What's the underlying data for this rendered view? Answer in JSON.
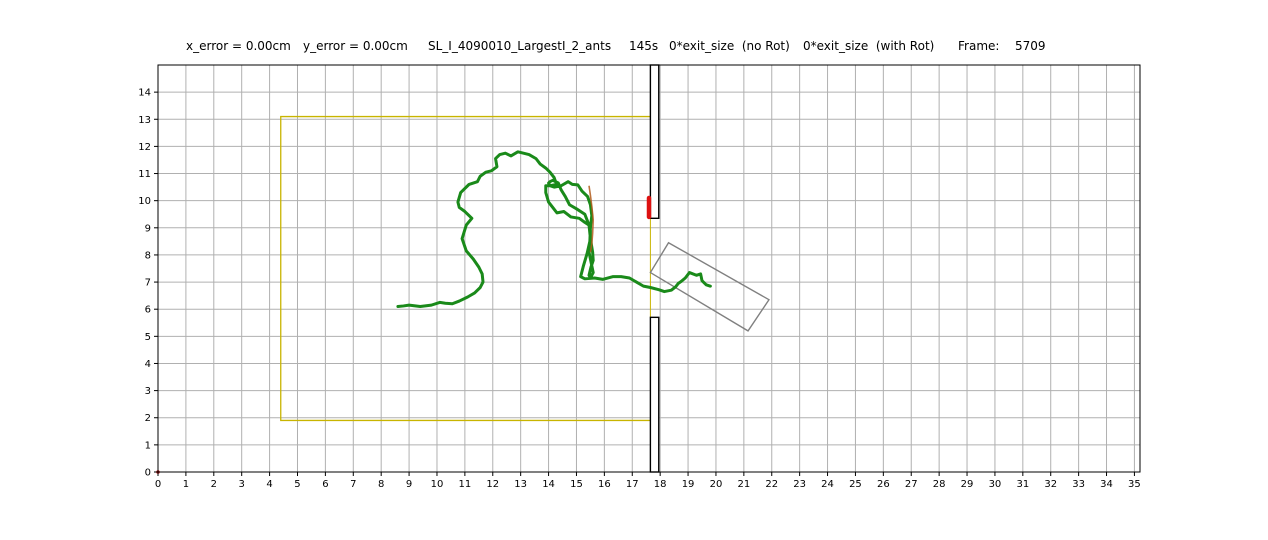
{
  "header": {
    "x_error": "x_error = 0.00cm",
    "y_error": "y_error = 0.00cm",
    "filename": "SL_I_4090010_LargestI_2_ants",
    "time": "145s",
    "exit_no_rot": "0*exit_size  (no Rot)",
    "exit_with_rot": "0*exit_size  (with Rot)",
    "frame_label": "Frame:",
    "frame_value": "5709"
  },
  "colors": {
    "trajectory": "#1a8a1a",
    "trajectory_segment": "#b05a1a",
    "marker": "#dd1111",
    "region": "#c8b400",
    "load": "#808080",
    "wall": "#000000",
    "grid": "#b0b0b0"
  },
  "chart_data": {
    "type": "line",
    "title": "",
    "xlabel": "",
    "ylabel": "",
    "xlim": [
      0,
      35.2
    ],
    "ylim": [
      0,
      15
    ],
    "xticks": [
      0,
      1,
      2,
      3,
      4,
      5,
      6,
      7,
      8,
      9,
      10,
      11,
      12,
      13,
      14,
      15,
      16,
      17,
      18,
      19,
      20,
      21,
      22,
      23,
      24,
      25,
      26,
      27,
      28,
      29,
      30,
      31,
      32,
      33,
      34,
      35
    ],
    "yticks": [
      0,
      1,
      2,
      3,
      4,
      5,
      6,
      7,
      8,
      9,
      10,
      11,
      12,
      13,
      14
    ],
    "grid": true,
    "legend": "none",
    "walls": [
      {
        "name": "upper wall",
        "x0": 17.65,
        "x1": 17.95,
        "y0": 9.35,
        "y1": 15.0
      },
      {
        "name": "lower wall",
        "x0": 17.65,
        "x1": 17.95,
        "y0": 0.0,
        "y1": 5.7
      }
    ],
    "region": {
      "x0": 4.4,
      "x1": 17.65,
      "y0": 1.9,
      "y1": 13.1
    },
    "load_rectangle": [
      [
        18.3,
        8.45
      ],
      [
        21.9,
        6.35
      ],
      [
        21.15,
        5.2
      ],
      [
        17.65,
        7.35
      ]
    ],
    "marker": {
      "x": 17.6,
      "y0": 9.4,
      "y1": 10.1
    },
    "series": [
      {
        "x": [
          8.6,
          8.8,
          9.0,
          9.4,
          9.8,
          10.1,
          10.3,
          10.55,
          10.8,
          11.1,
          11.35,
          11.55,
          11.65,
          11.62,
          11.5,
          11.3,
          11.05,
          10.9,
          11.05,
          11.25,
          11.0,
          10.8,
          10.75,
          10.85,
          11.15,
          11.45,
          11.55,
          11.75,
          11.95,
          12.15,
          12.1,
          12.25,
          12.45,
          12.65,
          12.9,
          13.1,
          13.3,
          13.55,
          13.7,
          13.9,
          14.05,
          14.2,
          14.25,
          14.3,
          14.05,
          13.9,
          13.9,
          14.0,
          14.15,
          14.3,
          14.55,
          14.8,
          15.1,
          15.3,
          15.45,
          15.5,
          15.5,
          15.58,
          15.6,
          15.52,
          15.45,
          15.5,
          15.6,
          15.55,
          15.45,
          15.5,
          15.45,
          15.3,
          15.0,
          14.75,
          14.6,
          14.45,
          14.35,
          14.15,
          14.05,
          14.0,
          14.05,
          14.2,
          14.45,
          14.7,
          14.85,
          15.05,
          15.2,
          15.4,
          15.5,
          15.55,
          15.5,
          15.48,
          15.38,
          15.25,
          15.15,
          15.3,
          15.65,
          15.95,
          16.3,
          16.6,
          16.9,
          17.15,
          17.4,
          17.65,
          17.95,
          18.15,
          18.4,
          18.55,
          18.65,
          18.75,
          18.9,
          19.05,
          19.3,
          19.45,
          19.5,
          19.65,
          19.8
        ],
        "y": [
          6.1,
          6.12,
          6.15,
          6.1,
          6.15,
          6.25,
          6.22,
          6.2,
          6.3,
          6.45,
          6.6,
          6.8,
          7.0,
          7.3,
          7.55,
          7.85,
          8.15,
          8.6,
          9.1,
          9.35,
          9.6,
          9.75,
          9.95,
          10.3,
          10.6,
          10.7,
          10.9,
          11.05,
          11.1,
          11.25,
          11.55,
          11.7,
          11.75,
          11.65,
          11.8,
          11.75,
          11.7,
          11.55,
          11.35,
          11.2,
          11.05,
          10.85,
          10.7,
          10.6,
          10.55,
          10.55,
          10.3,
          9.95,
          9.75,
          9.55,
          9.6,
          9.4,
          9.35,
          9.2,
          9.1,
          8.9,
          8.6,
          8.1,
          7.8,
          7.55,
          7.25,
          7.15,
          7.35,
          7.6,
          8.1,
          8.6,
          9.1,
          9.5,
          9.7,
          9.85,
          10.15,
          10.4,
          10.65,
          10.75,
          10.7,
          10.65,
          10.55,
          10.5,
          10.55,
          10.7,
          10.6,
          10.58,
          10.35,
          10.15,
          9.85,
          9.45,
          9.0,
          8.5,
          8.05,
          7.6,
          7.2,
          7.12,
          7.15,
          7.1,
          7.2,
          7.2,
          7.15,
          7.0,
          6.85,
          6.8,
          6.72,
          6.65,
          6.7,
          6.82,
          6.95,
          7.02,
          7.15,
          7.35,
          7.25,
          7.3,
          7.05,
          6.9,
          6.85
        ]
      }
    ],
    "highlight_segment": {
      "x": [
        15.45,
        15.5,
        15.55,
        15.6,
        15.58,
        15.55,
        15.5
      ],
      "y": [
        10.55,
        10.2,
        9.8,
        9.3,
        8.8,
        8.4,
        8.1
      ]
    }
  }
}
